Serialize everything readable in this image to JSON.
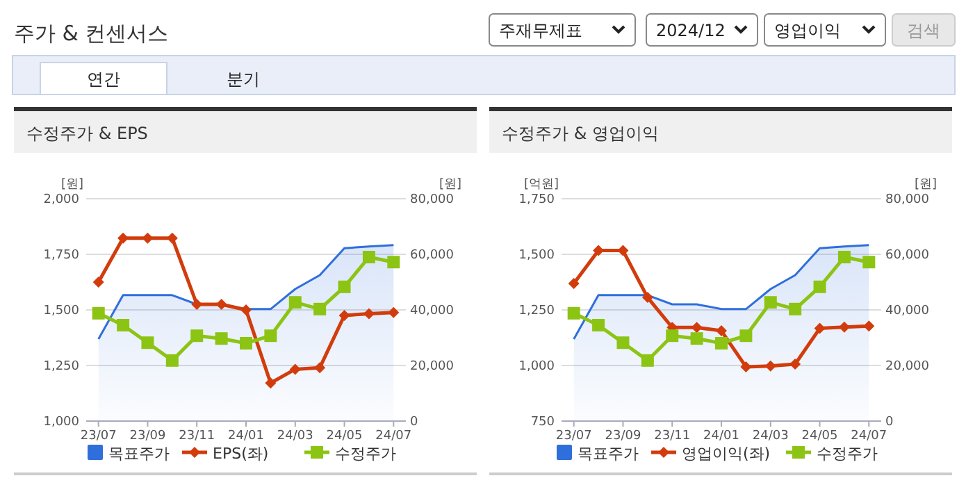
{
  "chart_data": [
    {
      "type": "other",
      "title": "주가 & 컨센서스",
      "annotations": [
        "주재무제표",
        "2024/12",
        "영업이익",
        "검색",
        "연간",
        "분기"
      ]
    },
    {
      "type": "line",
      "title": "수정주가 & EPS",
      "ylabel": "[원]",
      "y2label": "[원]",
      "categories": [
        "23/07",
        null,
        "23/09",
        null,
        "23/11",
        null,
        "24/01",
        null,
        "24/03",
        null,
        "24/05",
        null,
        "24/07"
      ],
      "ylim": [
        1000,
        2000
      ],
      "yticks": [
        {
          "value": 1000,
          "label": "1,000"
        },
        {
          "value": 1250,
          "label": "1,250"
        },
        {
          "value": 1500,
          "label": "1,500"
        },
        {
          "value": 1750,
          "label": "1,750"
        },
        {
          "value": 2000,
          "label": "2,000"
        }
      ],
      "y2lim": [
        0,
        80000
      ],
      "y2ticks": [
        0,
        {
          "value": 20000,
          "label": "20,000"
        },
        {
          "value": 40000,
          "label": "40,000"
        },
        {
          "value": 60000,
          "label": "60,000"
        },
        {
          "value": 80000,
          "label": "80,000"
        }
      ],
      "grid": "y",
      "legend": "bottom",
      "series": [
        {
          "name": "목표주가",
          "type": "area",
          "axis": "y2",
          "color": "#2f6fdc",
          "values": [
            29500,
            45300,
            45300,
            45300,
            42000,
            42000,
            40300,
            40300,
            47500,
            52500,
            62200,
            62800,
            63300
          ]
        },
        {
          "name": "EPS(좌)",
          "type": "line",
          "color": "#d23c0c",
          "marker": "diamond",
          "values": [
            1625,
            1823,
            1823,
            1823,
            1525,
            1525,
            1500,
            1171,
            1233,
            1240,
            1475,
            1483,
            1488
          ]
        },
        {
          "name": "수정주가",
          "type": "line",
          "axis": "y2",
          "color": "#8cc414",
          "marker": "square",
          "values": [
            38800,
            34500,
            28200,
            21800,
            30700,
            29700,
            28000,
            30700,
            42700,
            40300,
            48300,
            59000,
            57200
          ]
        }
      ]
    },
    {
      "type": "line",
      "title": "수정주가 & 영업이익",
      "ylabel": "[억원]",
      "y2label": "[원]",
      "categories": [
        "23/07",
        null,
        "23/09",
        null,
        "23/11",
        null,
        "24/01",
        null,
        "24/03",
        null,
        "24/05",
        null,
        "24/07"
      ],
      "ylim": [
        750,
        1750
      ],
      "yticks": [
        750,
        {
          "value": 1000,
          "label": "1,000"
        },
        {
          "value": 1250,
          "label": "1,250"
        },
        {
          "value": 1500,
          "label": "1,500"
        },
        {
          "value": 1750,
          "label": "1,750"
        }
      ],
      "y2lim": [
        0,
        80000
      ],
      "y2ticks": [
        0,
        {
          "value": 20000,
          "label": "20,000"
        },
        {
          "value": 40000,
          "label": "40,000"
        },
        {
          "value": 60000,
          "label": "60,000"
        },
        {
          "value": 80000,
          "label": "80,000"
        }
      ],
      "grid": "y",
      "legend": "bottom",
      "series": [
        {
          "name": "목표주가",
          "type": "area",
          "axis": "y2",
          "color": "#2f6fdc",
          "values": [
            29500,
            45300,
            45300,
            45300,
            42000,
            42000,
            40300,
            40300,
            47500,
            52500,
            62200,
            62800,
            63300
          ]
        },
        {
          "name": "영업이익(좌)",
          "type": "line",
          "color": "#d23c0c",
          "marker": "diamond",
          "values": [
            1369,
            1517,
            1517,
            1306,
            1171,
            1171,
            1156,
            994,
            998,
            1006,
            1167,
            1173,
            1177
          ]
        },
        {
          "name": "수정주가",
          "type": "line",
          "axis": "y2",
          "color": "#8cc414",
          "marker": "square",
          "values": [
            38800,
            34500,
            28200,
            21800,
            30700,
            29700,
            28000,
            30700,
            42700,
            40300,
            48300,
            59000,
            57200
          ]
        }
      ]
    }
  ]
}
